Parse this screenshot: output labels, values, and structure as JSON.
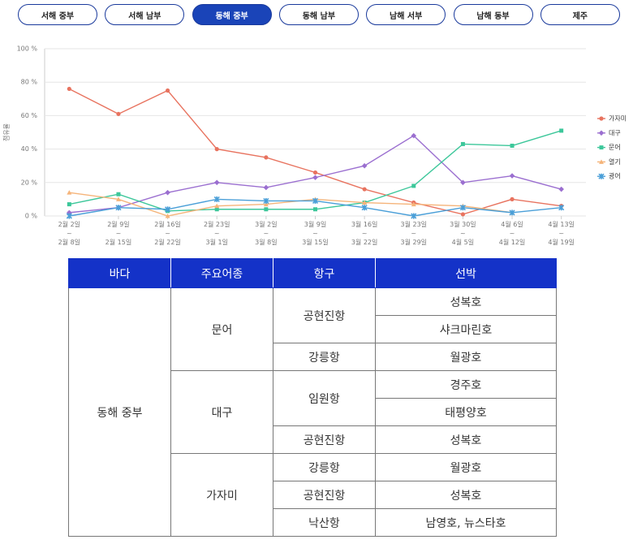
{
  "tabs": [
    {
      "label": "서해 중부",
      "active": false
    },
    {
      "label": "서해 남부",
      "active": false
    },
    {
      "label": "동해 중부",
      "active": true
    },
    {
      "label": "동해 남부",
      "active": false
    },
    {
      "label": "남해 서부",
      "active": false
    },
    {
      "label": "남해 동부",
      "active": false
    },
    {
      "label": "제주",
      "active": false
    }
  ],
  "chart_data": {
    "type": "line",
    "y_label": "점유율",
    "categories": [
      "2월 2일\n~\n2월 8일",
      "2월 9일\n~\n2월 15일",
      "2월 16일\n~\n2월 22일",
      "2월 23일\n~\n3월 1일",
      "3월 2일\n~\n3월 8일",
      "3월 9일\n~\n3월 15일",
      "3월 16일\n~\n3월 22일",
      "3월 23일\n~\n3월 29일",
      "3월 30일\n~\n4월 5일",
      "4월 6일\n~\n4월 12일",
      "4월 13일\n~\n4월 19일"
    ],
    "series": [
      {
        "name": "가자미",
        "color": "#e8735f",
        "marker": "circle",
        "values": [
          76,
          61,
          75,
          40,
          35,
          26,
          16,
          8,
          1,
          10,
          6
        ]
      },
      {
        "name": "대구",
        "color": "#9b6fd0",
        "marker": "diamond",
        "values": [
          2,
          5,
          14,
          20,
          17,
          23,
          30,
          48,
          20,
          24,
          16
        ]
      },
      {
        "name": "문어",
        "color": "#3cc79a",
        "marker": "square",
        "values": [
          7,
          13,
          3,
          4,
          4,
          4,
          8,
          18,
          43,
          42,
          51
        ]
      },
      {
        "name": "열기",
        "color": "#f5b47a",
        "marker": "triangle",
        "values": [
          14,
          10,
          0,
          6,
          7,
          10,
          8,
          7,
          6,
          2,
          null
        ]
      },
      {
        "name": "광어",
        "color": "#4a9fd8",
        "marker": "cross",
        "values": [
          0,
          5,
          4,
          10,
          9,
          9,
          5,
          0,
          5,
          2,
          5
        ]
      }
    ],
    "ylim": [
      0,
      100
    ],
    "yticks": [
      {
        "value": 0,
        "label": "0 %"
      },
      {
        "value": 20,
        "label": "20 %"
      },
      {
        "value": 40,
        "label": "40 %"
      },
      {
        "value": 60,
        "label": "60 %"
      },
      {
        "value": 80,
        "label": "80 %"
      },
      {
        "value": 100,
        "label": "100 %"
      }
    ],
    "grid": true,
    "legend": "right"
  },
  "table": {
    "header": [
      "바다",
      "주요어종",
      "항구",
      "선박"
    ],
    "sea": "동해 중부",
    "species": [
      {
        "name": "문어",
        "ports": [
          {
            "name": "공현진항",
            "vessels": [
              "성복호",
              "샤크마린호"
            ]
          },
          {
            "name": "강릉항",
            "vessels": [
              "월광호"
            ]
          }
        ]
      },
      {
        "name": "대구",
        "ports": [
          {
            "name": "임원항",
            "vessels": [
              "경주호",
              "태평양호"
            ]
          },
          {
            "name": "공현진항",
            "vessels": [
              "성복호"
            ]
          }
        ]
      },
      {
        "name": "가자미",
        "ports": [
          {
            "name": "강릉항",
            "vessels": [
              "월광호"
            ]
          },
          {
            "name": "공현진항",
            "vessels": [
              "성복호"
            ]
          },
          {
            "name": "낙산항",
            "vessels": [
              "남영호, 뉴스타호"
            ]
          }
        ]
      }
    ]
  }
}
